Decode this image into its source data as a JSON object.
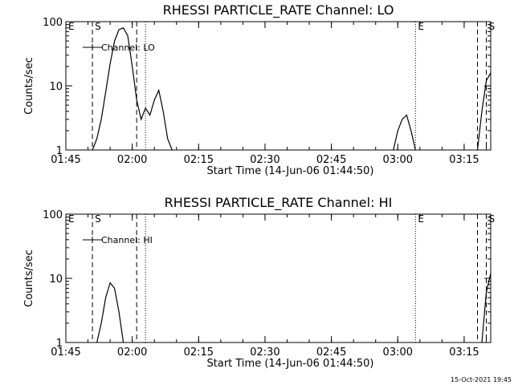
{
  "footer": {
    "timestamp": "15-Oct-2021 19:45"
  },
  "chart_data": [
    {
      "type": "line",
      "title": "RHESSI PARTICLE_RATE Channel: LO",
      "xlabel": "Start Time (14-Jun-06 01:44:50)",
      "ylabel": "Counts/sec",
      "yscale": "log",
      "ylim": [
        1,
        100
      ],
      "xlim": [
        "01:45",
        "03:21"
      ],
      "x_ticks": [
        "01:45",
        "02:00",
        "02:15",
        "02:30",
        "02:45",
        "03:00",
        "03:15"
      ],
      "y_ticks": [
        "1",
        "10",
        "100"
      ],
      "legend": {
        "label": "Channel: LO",
        "position": "top-left"
      },
      "markers": [
        {
          "label": "E",
          "time": "01:45",
          "style": "none"
        },
        {
          "label": "S",
          "time": "01:51",
          "style": "dashed"
        },
        {
          "label": "",
          "time": "02:01",
          "style": "dashed"
        },
        {
          "label": "",
          "time": "02:03",
          "style": "dotted"
        },
        {
          "label": "E",
          "time": "03:04",
          "style": "dotted"
        },
        {
          "label": "",
          "time": "03:18",
          "style": "dashed"
        },
        {
          "label": "S",
          "time": "03:20",
          "style": "dashed"
        }
      ],
      "series": [
        {
          "segments": [
            [
              [
                "01:51",
                1
              ],
              [
                "01:52",
                1.5
              ],
              [
                "01:53",
                3
              ],
              [
                "01:54",
                8
              ],
              [
                "01:55",
                22
              ],
              [
                "01:56",
                50
              ],
              [
                "01:57",
                75
              ],
              [
                "01:58",
                80
              ],
              [
                "01:59",
                60
              ],
              [
                "02:00",
                20
              ],
              [
                "02:01",
                6
              ],
              [
                "02:02",
                3
              ],
              [
                "02:03",
                4.5
              ],
              [
                "02:04",
                3.5
              ],
              [
                "02:05",
                6
              ],
              [
                "02:06",
                8.5
              ],
              [
                "02:07",
                4
              ],
              [
                "02:08",
                1.5
              ],
              [
                "02:09",
                1
              ]
            ],
            [
              [
                "02:59",
                1
              ],
              [
                "03:00",
                2
              ],
              [
                "03:01",
                3
              ],
              [
                "03:02",
                3.5
              ],
              [
                "03:03",
                2
              ],
              [
                "03:04",
                1
              ]
            ],
            [
              [
                "03:18",
                1
              ],
              [
                "03:19",
                4
              ],
              [
                "03:20",
                12
              ],
              [
                "03:21",
                16
              ]
            ]
          ]
        }
      ]
    },
    {
      "type": "line",
      "title": "RHESSI PARTICLE_RATE Channel: HI",
      "xlabel": "Start Time (14-Jun-06 01:44:50)",
      "ylabel": "Counts/sec",
      "yscale": "log",
      "ylim": [
        1,
        100
      ],
      "xlim": [
        "01:45",
        "03:21"
      ],
      "x_ticks": [
        "01:45",
        "02:00",
        "02:15",
        "02:30",
        "02:45",
        "03:00",
        "03:15"
      ],
      "y_ticks": [
        "1",
        "10",
        "100"
      ],
      "legend": {
        "label": "Channel: HI",
        "position": "top-left"
      },
      "markers": [
        {
          "label": "E",
          "time": "01:45",
          "style": "none"
        },
        {
          "label": "S",
          "time": "01:51",
          "style": "dashed"
        },
        {
          "label": "",
          "time": "02:01",
          "style": "dashed"
        },
        {
          "label": "",
          "time": "02:03",
          "style": "dotted"
        },
        {
          "label": "E",
          "time": "03:04",
          "style": "dotted"
        },
        {
          "label": "",
          "time": "03:18",
          "style": "dashed"
        },
        {
          "label": "S",
          "time": "03:20",
          "style": "dashed"
        }
      ],
      "series": [
        {
          "segments": [
            [
              [
                "01:52",
                1
              ],
              [
                "01:53",
                2
              ],
              [
                "01:54",
                5
              ],
              [
                "01:55",
                8.5
              ],
              [
                "01:56",
                7
              ],
              [
                "01:57",
                3
              ],
              [
                "01:58",
                1
              ]
            ],
            [
              [
                "03:19",
                1
              ],
              [
                "03:20",
                6
              ],
              [
                "03:21",
                12
              ]
            ]
          ]
        }
      ]
    }
  ]
}
